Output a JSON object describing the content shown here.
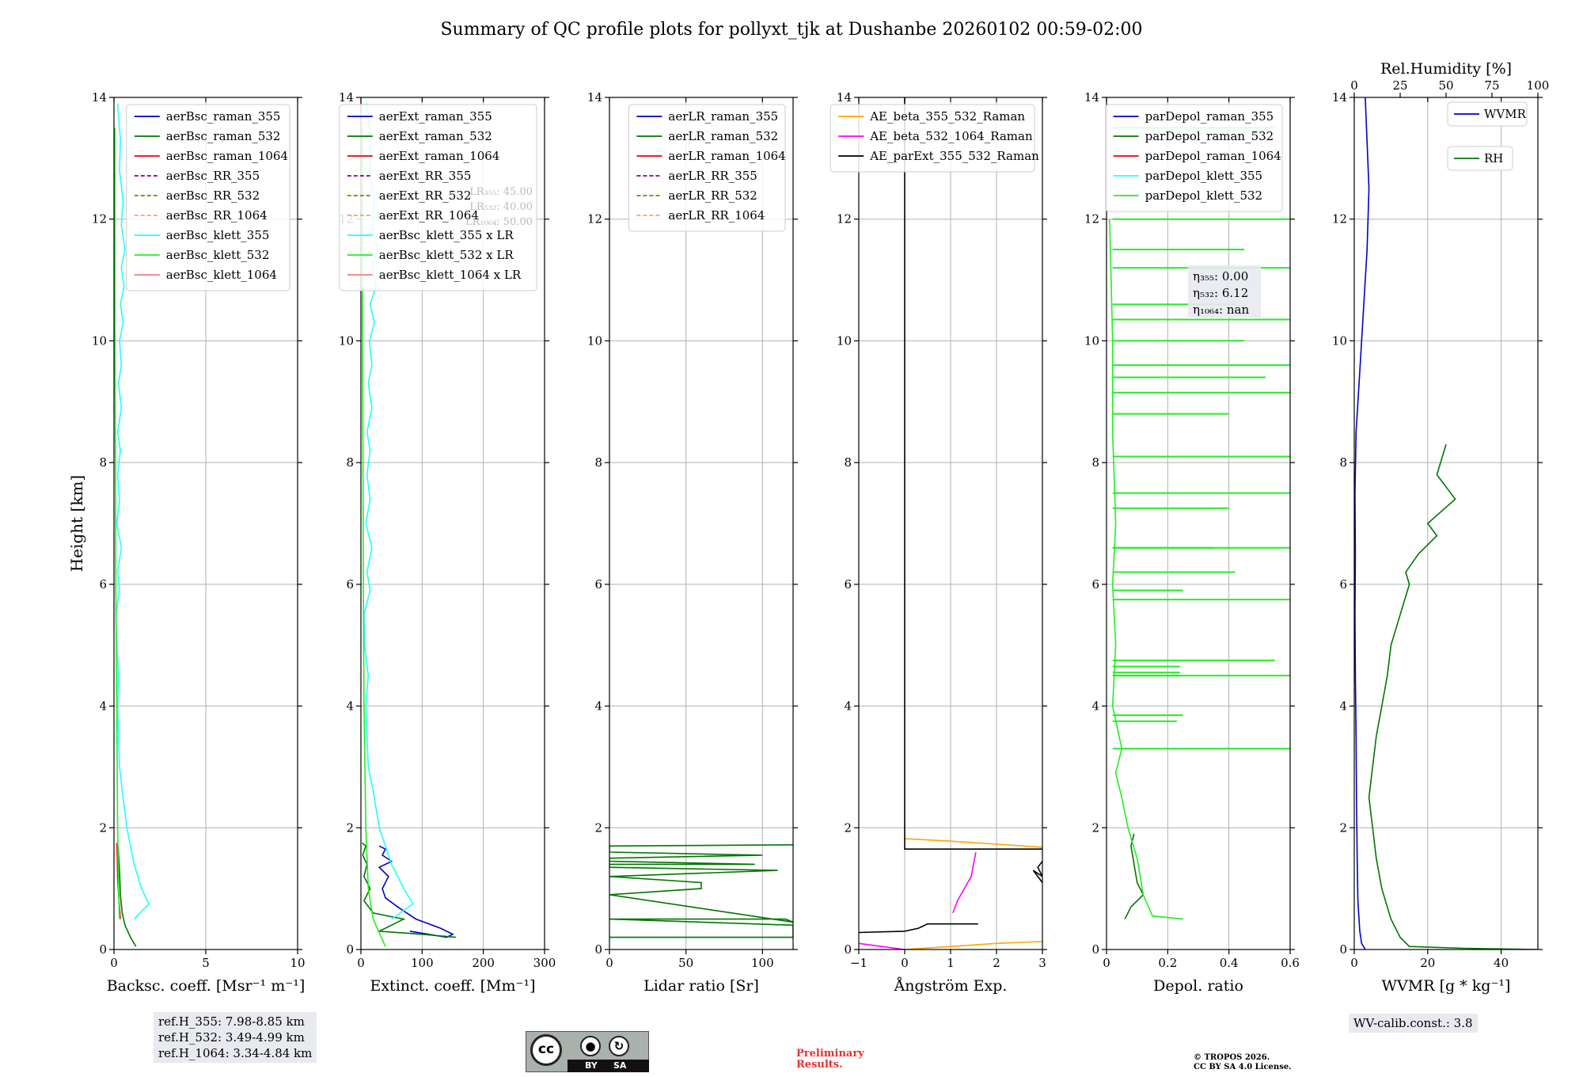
{
  "title": "Summary of QC profile plots for pollyxt_tjk at Dushanbe 20260102 00:59-02:00",
  "chart_data": [
    {
      "type": "line",
      "panel": "backscatter",
      "xlabel": "Backsc. coeff. [Msr⁻¹ m⁻¹]",
      "ylabel": "Height [km]",
      "xlim": [
        0,
        10
      ],
      "ylim": [
        0,
        14
      ],
      "xticks": [
        0,
        5,
        10
      ],
      "yticks": [
        0,
        2,
        4,
        6,
        8,
        10,
        12,
        14
      ],
      "grid": true,
      "legend_position": "top-right",
      "series": [
        {
          "name": "aerBsc_raman_355",
          "color": "#0000cc",
          "dash": "solid",
          "x": [],
          "y": []
        },
        {
          "name": "aerBsc_raman_532",
          "color": "#007700",
          "dash": "solid",
          "x": [
            1.2,
            0.9,
            0.6,
            0.45,
            0.35,
            0.3,
            0.22
          ],
          "y": [
            0.05,
            0.2,
            0.4,
            0.6,
            0.9,
            1.3,
            1.7
          ]
        },
        {
          "name": "aerBsc_raman_1064",
          "color": "#ee0000",
          "dash": "solid",
          "x": [
            0.35,
            0.3,
            0.25,
            0.2,
            0.18,
            0.16
          ],
          "y": [
            0.5,
            0.7,
            0.9,
            1.2,
            1.5,
            1.75
          ]
        },
        {
          "name": "aerBsc_RR_355",
          "color": "#800080",
          "dash": "dashed",
          "x": [],
          "y": []
        },
        {
          "name": "aerBsc_RR_532",
          "color": "#808000",
          "dash": "dashed",
          "x": [],
          "y": []
        },
        {
          "name": "aerBsc_RR_1064",
          "color": "#ff9980",
          "dash": "dashed",
          "x": [],
          "y": []
        },
        {
          "name": "aerBsc_klett_355",
          "color": "#22ffff",
          "dash": "solid",
          "x": [
            1.1,
            1.9,
            1.5,
            1.1,
            0.7,
            0.45,
            0.3,
            0.25,
            0.2,
            0.25,
            0.15,
            0.1,
            0.3,
            0.2,
            0.4,
            0.15,
            0.3,
            0.2,
            0.35,
            0.2,
            0.4,
            0.25,
            0.4,
            0.3,
            0.5,
            0.35,
            0.55,
            0.4,
            0.6,
            0.4,
            0.5,
            0.3,
            0.35,
            0.2
          ],
          "y": [
            0.5,
            0.75,
            1.0,
            1.4,
            2.0,
            2.6,
            3.0,
            3.5,
            4.0,
            4.5,
            5.0,
            5.5,
            5.9,
            6.2,
            6.6,
            7.0,
            7.4,
            7.8,
            8.2,
            8.5,
            8.9,
            9.3,
            9.6,
            10.0,
            10.3,
            10.6,
            10.9,
            11.2,
            11.5,
            11.9,
            12.3,
            12.8,
            13.3,
            13.9
          ]
        },
        {
          "name": "aerBsc_klett_532",
          "color": "#22ee22",
          "dash": "solid",
          "x": [
            0.3,
            0.25,
            0.2,
            0.15,
            0.1,
            0.08,
            0.05,
            0.05
          ],
          "y": [
            0.5,
            1.0,
            2.0,
            4.0,
            6.0,
            8.0,
            10.0,
            13.5
          ]
        },
        {
          "name": "aerBsc_klett_1064",
          "color": "#f08080",
          "dash": "solid",
          "x": [],
          "y": []
        }
      ]
    },
    {
      "type": "line",
      "panel": "extinction",
      "xlabel": "Extinct. coeff. [Mm⁻¹]",
      "xlim": [
        0,
        300
      ],
      "ylim": [
        0,
        14
      ],
      "xticks": [
        0,
        100,
        200,
        300
      ],
      "yticks": [
        0,
        2,
        4,
        6,
        8,
        10,
        12,
        14
      ],
      "grid": true,
      "legend_position": "top-right",
      "lr_annotations": [
        "LR₃₅₅: 45.00",
        "LR₅₃₂: 40.00",
        "LR₁₀₆₄: 50.00"
      ],
      "series": [
        {
          "name": "aerExt_raman_355",
          "color": "#0000cc",
          "dash": "solid",
          "x": [
            80,
            140,
            150,
            130,
            90,
            60,
            40,
            35,
            45,
            30,
            50,
            35,
            40,
            30
          ],
          "y": [
            0.3,
            0.2,
            0.25,
            0.35,
            0.5,
            0.7,
            0.85,
            1.0,
            1.2,
            1.35,
            1.45,
            1.55,
            1.65,
            1.7
          ]
        },
        {
          "name": "aerExt_raman_532",
          "color": "#007700",
          "dash": "solid",
          "x": [
            155,
            100,
            30,
            70,
            20,
            5,
            15,
            5,
            10,
            3,
            8,
            2
          ],
          "y": [
            0.2,
            0.25,
            0.3,
            0.5,
            0.6,
            0.8,
            1.0,
            1.2,
            1.4,
            1.55,
            1.7,
            1.75
          ]
        },
        {
          "name": "aerExt_raman_1064",
          "color": "#ee0000",
          "dash": "solid",
          "x": [],
          "y": []
        },
        {
          "name": "aerExt_RR_355",
          "color": "#800080",
          "dash": "dashed",
          "x": [],
          "y": []
        },
        {
          "name": "aerExt_RR_532",
          "color": "#808000",
          "dash": "dashed",
          "x": [],
          "y": []
        },
        {
          "name": "aerExt_RR_1064",
          "color": "#ff9980",
          "dash": "dashed",
          "x": [],
          "y": []
        },
        {
          "name": "aerBsc_klett_355 x LR",
          "color": "#22ffff",
          "dash": "solid",
          "x": [
            50,
            85,
            70,
            50,
            30,
            20,
            12,
            10,
            8,
            12,
            6,
            5,
            15,
            10,
            18,
            8,
            15,
            10,
            15,
            10,
            18,
            12,
            18,
            14,
            22,
            15,
            25,
            18,
            27,
            18,
            22,
            14,
            16,
            9
          ],
          "y": [
            0.5,
            0.75,
            1.0,
            1.4,
            2.0,
            2.6,
            3.0,
            3.5,
            4.0,
            4.5,
            5.0,
            5.5,
            5.9,
            6.2,
            6.6,
            7.0,
            7.4,
            7.8,
            8.2,
            8.5,
            8.9,
            9.3,
            9.6,
            10.0,
            10.3,
            10.6,
            10.9,
            11.2,
            11.5,
            11.9,
            12.3,
            12.8,
            13.3,
            13.9
          ]
        },
        {
          "name": "aerBsc_klett_532 x LR",
          "color": "#22ee22",
          "dash": "solid",
          "x": [
            40,
            20,
            12,
            8,
            5,
            4,
            3,
            2
          ],
          "y": [
            0.05,
            0.5,
            1.0,
            2.0,
            4.0,
            6.0,
            9.0,
            13.5
          ]
        },
        {
          "name": "aerBsc_klett_1064 x LR",
          "color": "#f08080",
          "dash": "solid",
          "x": [],
          "y": []
        }
      ]
    },
    {
      "type": "line",
      "panel": "lidar_ratio",
      "xlabel": "Lidar ratio [Sr]",
      "xlim": [
        0,
        120
      ],
      "ylim": [
        0,
        14
      ],
      "xticks": [
        0,
        50,
        100
      ],
      "yticks": [
        0,
        2,
        4,
        6,
        8,
        10,
        12,
        14
      ],
      "grid": true,
      "legend_position": "top-right",
      "series": [
        {
          "name": "aerLR_raman_355",
          "color": "#0000cc",
          "dash": "solid",
          "x": [],
          "y": []
        },
        {
          "name": "aerLR_raman_532",
          "color": "#007700",
          "dash": "solid",
          "x": [
            0,
            120,
            120,
            0,
            0,
            115,
            120,
            0,
            0,
            60,
            60,
            60,
            0,
            0,
            110,
            0,
            0,
            95,
            0,
            0,
            100,
            0,
            0,
            120
          ],
          "y": [
            0.2,
            0.2,
            0.4,
            0.5,
            0.5,
            0.5,
            0.45,
            0.9,
            0.9,
            1.0,
            1.05,
            1.1,
            1.2,
            1.2,
            1.3,
            1.35,
            1.4,
            1.4,
            1.45,
            1.5,
            1.55,
            1.6,
            1.7,
            1.72
          ]
        },
        {
          "name": "aerLR_raman_1064",
          "color": "#ee0000",
          "dash": "solid",
          "x": [],
          "y": []
        },
        {
          "name": "aerLR_RR_355",
          "color": "#800080",
          "dash": "dashed",
          "x": [],
          "y": []
        },
        {
          "name": "aerLR_RR_532",
          "color": "#808000",
          "dash": "dashed",
          "x": [],
          "y": []
        },
        {
          "name": "aerLR_RR_1064",
          "color": "#ff9980",
          "dash": "dashed",
          "x": [],
          "y": []
        }
      ]
    },
    {
      "type": "line",
      "panel": "angstrom",
      "xlabel": "Ångström Exp.",
      "xlim": [
        -1,
        3
      ],
      "ylim": [
        0,
        14
      ],
      "xticks": [
        -1,
        0,
        1,
        2,
        3
      ],
      "yticks": [
        0,
        2,
        4,
        6,
        8,
        10,
        12,
        14
      ],
      "grid": true,
      "legend_position": "top-right",
      "series": [
        {
          "name": "AE_beta_355_532_Raman",
          "color": "#ffa500",
          "dash": "solid",
          "x": [
            0.0,
            1.0,
            2.0,
            3.0,
            null,
            0.0,
            1.0,
            2.0,
            3.0
          ],
          "y": [
            1.82,
            1.78,
            1.73,
            1.68,
            null,
            0.0,
            0.05,
            0.1,
            0.13
          ]
        },
        {
          "name": "AE_beta_532_1064_Raman",
          "color": "#ff00ff",
          "dash": "solid",
          "x": [
            -1,
            0,
            null,
            1.05,
            1.15,
            1.3,
            1.45,
            1.5,
            1.55
          ],
          "y": [
            0.1,
            0.0,
            null,
            0.6,
            0.8,
            1.0,
            1.2,
            1.4,
            1.6
          ]
        },
        {
          "name": "AE_parExt_355_532_Raman",
          "color": "#000000",
          "dash": "solid",
          "x": [
            0.0,
            0.0,
            1.6,
            3.0,
            null,
            -1.0,
            0.0,
            0.3,
            0.5,
            1.6,
            null,
            3.0,
            2.9,
            3.0,
            2.8,
            3.0
          ],
          "y": [
            14.0,
            1.65,
            1.65,
            1.65,
            null,
            0.28,
            0.3,
            0.35,
            0.42,
            0.42,
            null,
            1.45,
            1.35,
            1.2,
            1.3,
            1.1
          ]
        }
      ]
    },
    {
      "type": "line",
      "panel": "depolarization",
      "xlabel": "Depol. ratio",
      "xlim": [
        0,
        0.6
      ],
      "ylim": [
        0,
        14
      ],
      "xticks": [
        0.0,
        0.2,
        0.4,
        0.6
      ],
      "yticks": [
        0,
        2,
        4,
        6,
        8,
        10,
        12,
        14
      ],
      "grid": true,
      "legend_position": "top-right",
      "eta_labels": [
        "η₃₅₅: 0.00",
        "η₅₃₂: 6.12",
        "η₁₀₆₄: nan"
      ],
      "series": [
        {
          "name": "parDepol_raman_355",
          "color": "#0000cc",
          "dash": "solid",
          "x": [],
          "y": []
        },
        {
          "name": "parDepol_raman_532",
          "color": "#007700",
          "dash": "solid",
          "x": [
            0.06,
            0.08,
            0.12,
            0.1,
            0.09,
            0.08,
            0.09
          ],
          "y": [
            0.5,
            0.7,
            0.9,
            1.1,
            1.4,
            1.7,
            1.9
          ]
        },
        {
          "name": "parDepol_raman_1064",
          "color": "#ee0000",
          "dash": "solid",
          "x": [],
          "y": []
        },
        {
          "name": "parDepol_klett_355",
          "color": "#22ffff",
          "dash": "solid",
          "x": [],
          "y": []
        },
        {
          "name": "parDepol_klett_532",
          "color": "#22ee22",
          "dash": "solid",
          "x": [
            0.25,
            0.15,
            0.12,
            0.1,
            0.07,
            0.05,
            0.03,
            0.05,
            0.02,
            0.03,
            0.02,
            0.03,
            0.02,
            0.02,
            0.01
          ],
          "y": [
            0.5,
            0.55,
            0.9,
            1.5,
            2.0,
            2.5,
            2.9,
            3.3,
            4.0,
            5.0,
            6.0,
            7.0,
            8.5,
            10.0,
            12.0
          ],
          "spikes": [
            [
              0.6,
              3.3
            ],
            [
              0.23,
              3.75
            ],
            [
              0.25,
              3.85
            ],
            [
              0.24,
              4.5
            ],
            [
              0.24,
              4.55
            ],
            [
              0.6,
              4.5
            ],
            [
              0.24,
              4.65
            ],
            [
              0.55,
              4.75
            ],
            [
              0.6,
              5.75
            ],
            [
              0.25,
              5.9
            ],
            [
              0.6,
              6.6
            ],
            [
              0.42,
              6.2
            ],
            [
              0.35,
              6.6
            ],
            [
              0.4,
              7.25
            ],
            [
              0.6,
              7.5
            ],
            [
              0.6,
              8.1
            ],
            [
              0.4,
              8.8
            ],
            [
              0.6,
              9.15
            ],
            [
              0.52,
              9.4
            ],
            [
              0.6,
              9.6
            ],
            [
              0.45,
              10.0
            ],
            [
              0.6,
              10.35
            ],
            [
              0.42,
              10.6
            ],
            [
              0.6,
              11.2
            ],
            [
              0.45,
              11.5
            ],
            [
              0.6,
              12.0
            ],
            [
              0.55,
              13.5
            ]
          ]
        }
      ]
    },
    {
      "type": "line",
      "panel": "water_vapour",
      "xlabel": "WVMR [g * kg⁻¹]",
      "x2label": "Rel.Humidity [%]",
      "xlim": [
        0,
        50
      ],
      "x2lim": [
        0,
        100
      ],
      "ylim": [
        0,
        14
      ],
      "xticks": [
        0,
        20,
        40
      ],
      "x2ticks": [
        0,
        25,
        50,
        75,
        100
      ],
      "yticks": [
        0,
        2,
        4,
        6,
        8,
        10,
        12,
        14
      ],
      "grid": true,
      "series": [
        {
          "name": "WVMR",
          "color": "#0000cc",
          "dash": "solid",
          "axis": "bottom",
          "x": [
            3,
            2,
            1.5,
            1.0,
            0.8,
            0.6,
            0.5,
            0.3,
            0.2,
            0.3,
            0.2,
            0.5,
            1.5,
            2.5,
            3.5,
            4.0,
            3.0
          ],
          "y": [
            0.0,
            0.1,
            0.3,
            0.8,
            1.5,
            2.5,
            3.5,
            4.5,
            5.5,
            6.5,
            7.5,
            8.5,
            9.5,
            10.5,
            11.5,
            12.5,
            14.0
          ]
        },
        {
          "name": "RH",
          "color": "#007700",
          "dash": "solid",
          "axis": "top",
          "x": [
            100,
            60,
            30,
            25,
            20,
            15,
            12,
            10,
            8,
            10,
            12,
            15,
            18,
            20,
            25,
            30,
            28,
            35,
            45,
            40,
            55,
            45,
            50
          ],
          "y": [
            0.0,
            0.02,
            0.05,
            0.2,
            0.5,
            1.0,
            1.5,
            2.0,
            2.5,
            3.0,
            3.5,
            4.0,
            4.5,
            5.0,
            5.5,
            6.0,
            6.2,
            6.5,
            6.8,
            7.0,
            7.4,
            7.8,
            8.3
          ]
        }
      ],
      "wv_calib": "WV-calib.const.: 3.8"
    }
  ],
  "ref_heights": [
    "ref.H_355: 7.98-8.85 km",
    "ref.H_532: 3.49-4.99 km",
    "ref.H_1064: 3.34-4.84 km"
  ],
  "license_badge": {
    "cc": "cc",
    "by": "BY",
    "sa": "SA"
  },
  "preliminary": "Preliminary\nResults.",
  "copyright": [
    "© TROPOS 2026.",
    "CC BY SA 4.0 License."
  ],
  "colors": {
    "preliminary": "#e83030",
    "annotation_box": "#e8eaef",
    "grid": "#b0b0b0"
  }
}
